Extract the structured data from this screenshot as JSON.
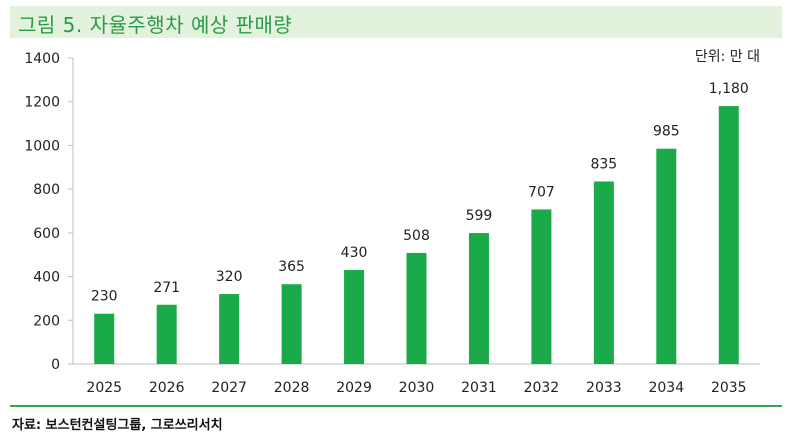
{
  "header": {
    "title": "그림 5. 자율주행차 예상 판매량"
  },
  "unit_label": "단위: 만 대",
  "source": "자료: 보스턴컨설팅그룹, 그로쓰리서치",
  "colors": {
    "bar": "#1aaa4a",
    "title_bg": "#e3f2dc",
    "title_text": "#2b9a4a",
    "rule": "#37a94c"
  },
  "chart_data": {
    "type": "bar",
    "title": "그림 5. 자율주행차 예상 판매량",
    "xlabel": "",
    "ylabel": "",
    "categories": [
      "2025",
      "2026",
      "2027",
      "2028",
      "2029",
      "2030",
      "2031",
      "2032",
      "2033",
      "2034",
      "2035"
    ],
    "values": [
      230,
      271,
      320,
      365,
      430,
      508,
      599,
      707,
      835,
      985,
      1180
    ],
    "value_labels": [
      "230",
      "271",
      "320",
      "365",
      "430",
      "508",
      "599",
      "707",
      "835",
      "985",
      "1,180"
    ],
    "ylim": [
      0,
      1400
    ],
    "yticks": [
      "0",
      "200",
      "400",
      "600",
      "800",
      "1000",
      "1200",
      "1400"
    ],
    "grid": false,
    "legend": "none"
  }
}
